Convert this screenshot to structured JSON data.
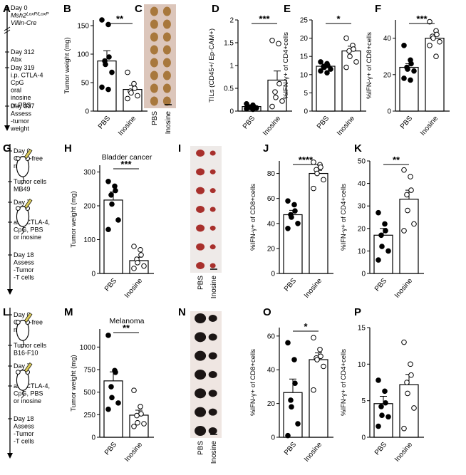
{
  "panels": {
    "A": "A",
    "B": "B",
    "C": "C",
    "D": "D",
    "E": "E",
    "F": "F",
    "G": "G",
    "H": "H",
    "I": "I",
    "J": "J",
    "K": "K",
    "L": "L",
    "M": "M",
    "N": "N",
    "O": "O",
    "P": "P"
  },
  "timelines": {
    "A": [
      [
        "Day 0",
        "Msh2LoxP/LoxP",
        "Villin-Cre"
      ],
      [
        "Day 312",
        "Abx"
      ],
      [
        "Day 319",
        "i.p. CTLA-4",
        "CpG",
        "oral",
        "inosine",
        "or PBS"
      ],
      [
        "Day 337",
        "Assess",
        "-tumor",
        "weight"
      ]
    ],
    "G": [
      [
        "Day 0",
        "Germ-free",
        "mice"
      ],
      [
        "Tumor cells",
        "MB49"
      ],
      [
        "Day 7"
      ],
      [
        "anti-CTLA-4,",
        "CpG, PBS",
        "or inosine"
      ],
      [
        "Day 18",
        "Assess",
        "-Tumor",
        "-T cells"
      ]
    ],
    "L": [
      [
        "Day 0",
        "Germ-free",
        "mice"
      ],
      [
        "Tumor cells",
        "B16-F10"
      ],
      [
        "Day 7"
      ],
      [
        "anti-CTLA-4,",
        "CpG, PBS",
        "or inosine"
      ],
      [
        "Day 18",
        "Assess",
        "-Tumor",
        "-T cells"
      ]
    ]
  },
  "photos": {
    "C": {
      "labels": [
        "PBS",
        "Inosine"
      ],
      "colors": {
        "bg": "#dcc6bb",
        "tumor": "#a8783c"
      }
    },
    "I": {
      "labels": [
        "PBS",
        "Inosine"
      ],
      "colors": {
        "bg": "#eeeae8",
        "tumor": "#a8302c"
      }
    },
    "N": {
      "labels": [
        "PBS",
        "Inosine"
      ],
      "colors": {
        "bg": "#efe6e2",
        "tumor": "#1b1514"
      }
    }
  },
  "chart_data": [
    {
      "id": "B",
      "type": "bar",
      "title": "",
      "categories": [
        "PBS",
        "Inosine"
      ],
      "ylabel": "Tumor weight (mg)",
      "ylim": [
        0,
        160
      ],
      "yticks": [
        0,
        50,
        100,
        150
      ],
      "means": [
        88,
        38
      ],
      "sem": [
        18,
        7
      ],
      "significance": "**",
      "points": [
        [
          160,
          152,
          95,
          88,
          82,
          68,
          42,
          38
        ],
        [
          68,
          48,
          40,
          35,
          32,
          27,
          22
        ]
      ]
    },
    {
      "id": "D",
      "type": "bar",
      "title": "",
      "categories": [
        "PBS",
        "Inosine"
      ],
      "ylabel": "TILs (CD45+/ Ep-CAM+)",
      "ylim": [
        0,
        2.0
      ],
      "yticks": [
        0,
        0.5,
        1.0,
        1.5,
        2.0
      ],
      "means": [
        0.1,
        0.68
      ],
      "sem": [
        0.03,
        0.2
      ],
      "significance": "***",
      "points": [
        [
          0.16,
          0.13,
          0.1,
          0.09,
          0.08,
          0.07,
          0.05,
          0.04
        ],
        [
          1.55,
          1.48,
          0.6,
          0.42,
          0.3,
          0.22,
          0.1
        ]
      ]
    },
    {
      "id": "E",
      "type": "bar",
      "title": "",
      "categories": [
        "PBS",
        "Inosine"
      ],
      "ylabel": "%IFN-γ+ of CD4+cells",
      "ylim": [
        0,
        25
      ],
      "yticks": [
        0,
        5,
        10,
        15,
        20,
        25
      ],
      "means": [
        12.3,
        16.5
      ],
      "sem": [
        0.6,
        1.3
      ],
      "significance": "*",
      "points": [
        [
          13.5,
          13,
          12.5,
          12.2,
          12,
          11.5,
          11,
          10.5
        ],
        [
          20,
          18,
          17,
          16.5,
          15,
          13.5,
          12
        ]
      ]
    },
    {
      "id": "F",
      "type": "bar",
      "title": "",
      "categories": [
        "PBS",
        "Inosine"
      ],
      "ylabel": "%IFN-γ+ of CD8+cells",
      "ylim": [
        0,
        50
      ],
      "yticks": [
        0,
        20,
        40
      ],
      "means": [
        24,
        40
      ],
      "sem": [
        2,
        2
      ],
      "significance": "***",
      "points": [
        [
          36,
          28,
          26,
          24,
          23,
          22,
          18,
          17
        ],
        [
          49,
          44,
          42,
          41,
          40,
          38,
          36,
          30
        ]
      ]
    },
    {
      "id": "H",
      "type": "bar",
      "title": "Bladder cancer",
      "categories": [
        "PBS",
        "Inosine"
      ],
      "ylabel": "Tumor weight (mg)",
      "ylim": [
        0,
        320
      ],
      "yticks": [
        0,
        100,
        200,
        300
      ],
      "means": [
        217,
        38
      ],
      "sem": [
        24,
        10
      ],
      "significance": "***",
      "points": [
        [
          272,
          258,
          245,
          232,
          205,
          158,
          130
        ],
        [
          80,
          70,
          55,
          42,
          32,
          22,
          15
        ]
      ]
    },
    {
      "id": "J",
      "type": "bar",
      "title": "",
      "categories": [
        "PBS",
        "Inosine"
      ],
      "ylabel": "%IFN-γ+ of CD8+cells",
      "ylim": [
        0,
        90
      ],
      "yticks": [
        0,
        20,
        40,
        60,
        80
      ],
      "means": [
        47,
        80
      ],
      "sem": [
        3.5,
        2.5
      ],
      "significance": "****",
      "points": [
        [
          58,
          55,
          50,
          47,
          45,
          40,
          36
        ],
        [
          89,
          87,
          85,
          83,
          80,
          75,
          68
        ]
      ]
    },
    {
      "id": "K",
      "type": "bar",
      "title": "",
      "categories": [
        "PBS",
        "Inosine"
      ],
      "ylabel": "%IFN-γ+ of CD4+cells",
      "ylim": [
        0,
        50
      ],
      "yticks": [
        0,
        10,
        20,
        30,
        40,
        50
      ],
      "means": [
        17,
        33
      ],
      "sem": [
        3,
        4
      ],
      "significance": "**",
      "points": [
        [
          27,
          22,
          19,
          17,
          12,
          10,
          6
        ],
        [
          46,
          43,
          37,
          35,
          28,
          22,
          19
        ]
      ]
    },
    {
      "id": "M",
      "type": "bar",
      "title": "Melanoma",
      "categories": [
        "PBS",
        "Inosine"
      ],
      "ylabel": "Tumor weight (mg)",
      "ylim": [
        0,
        1200
      ],
      "yticks": [
        0,
        250,
        500,
        750,
        1000
      ],
      "means": [
        625,
        245
      ],
      "sem": [
        100,
        55
      ],
      "significance": "**",
      "points": [
        [
          1130,
          740,
          720,
          560,
          440,
          380,
          310
        ],
        [
          520,
          340,
          260,
          240,
          160,
          150,
          120
        ]
      ]
    },
    {
      "id": "O",
      "type": "bar",
      "title": "",
      "categories": [
        "PBS",
        "Inosine"
      ],
      "ylabel": "%IFN-γ+ of CD8+cells",
      "ylim": [
        0,
        65
      ],
      "yticks": [
        0,
        20,
        40,
        60
      ],
      "means": [
        26.5,
        46
      ],
      "sem": [
        8,
        4
      ],
      "significance": "*",
      "points": [
        [
          56,
          46,
          32,
          22,
          18,
          8,
          1
        ],
        [
          59,
          52,
          48,
          47,
          46,
          42,
          28
        ]
      ]
    },
    {
      "id": "P",
      "type": "bar",
      "title": "",
      "categories": [
        "PBS",
        "Inosine"
      ],
      "ylabel": "%IFN-γ+ of CD4+cells",
      "ylim": [
        0,
        15
      ],
      "yticks": [
        0,
        5,
        10,
        15
      ],
      "means": [
        4.6,
        7.2
      ],
      "sem": [
        1.0,
        1.4
      ],
      "significance": "",
      "points": [
        [
          7.8,
          6.3,
          4.7,
          4.2,
          3,
          2.8,
          1.5
        ],
        [
          13,
          10,
          8.5,
          7.5,
          6,
          4,
          1.2
        ]
      ]
    }
  ]
}
